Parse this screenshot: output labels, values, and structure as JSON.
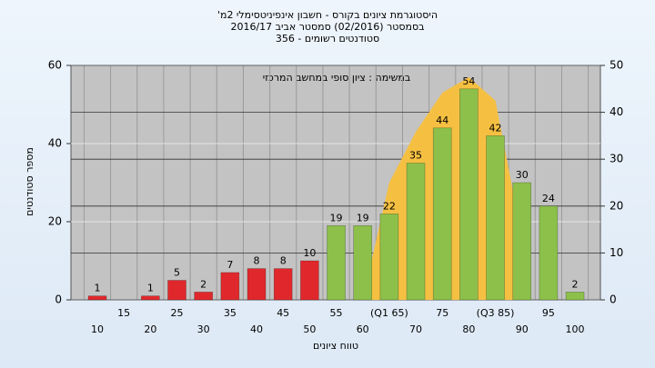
{
  "chart_data": {
    "type": "bar",
    "title": [
      "היסטוגרמת ציונים בקורס - חשבון אינפיניטסימלי 2מ'",
      "בסמסטר  (02/2016)  סמסטר אביב 2016/17",
      "סטודנטים רשומים - 356"
    ],
    "annotation": "במשימה : ציון סופי במחשב המרכזי",
    "x_label": "טווח ציונים",
    "y_label": "מספר סטודנטים",
    "categories": [
      "10",
      "15",
      "20",
      "25",
      "30",
      "35",
      "40",
      "45",
      "50",
      "55",
      "60",
      "(Q1 65)",
      "70",
      "75",
      "80",
      "(Q3 85)",
      "90",
      "95",
      "100"
    ],
    "values": [
      1,
      null,
      1,
      5,
      2,
      7,
      8,
      8,
      10,
      19,
      19,
      22,
      35,
      44,
      54,
      42,
      30,
      24,
      2
    ],
    "colors": [
      "#e0282c",
      "#e0282c",
      "#e0282c",
      "#e0282c",
      "#e0282c",
      "#e0282c",
      "#e0282c",
      "#e0282c",
      "#e0282c",
      "#8cc04a",
      "#8cc04a",
      "#8cc04a",
      "#8cc04a",
      "#8cc04a",
      "#8cc04a",
      "#8cc04a",
      "#8cc04a",
      "#8cc04a",
      "#8cc04a"
    ],
    "area": {
      "color": "#f5c042",
      "values": [
        null,
        null,
        null,
        null,
        null,
        null,
        null,
        null,
        null,
        null,
        0,
        30,
        43,
        53,
        57,
        51,
        16,
        null,
        null
      ]
    },
    "ylim": [
      0,
      60
    ],
    "yticks": [
      0,
      20,
      40,
      60
    ],
    "y2lim": [
      0,
      50
    ],
    "y2ticks": [
      0,
      10,
      20,
      30,
      40,
      50
    ],
    "grid": true
  }
}
